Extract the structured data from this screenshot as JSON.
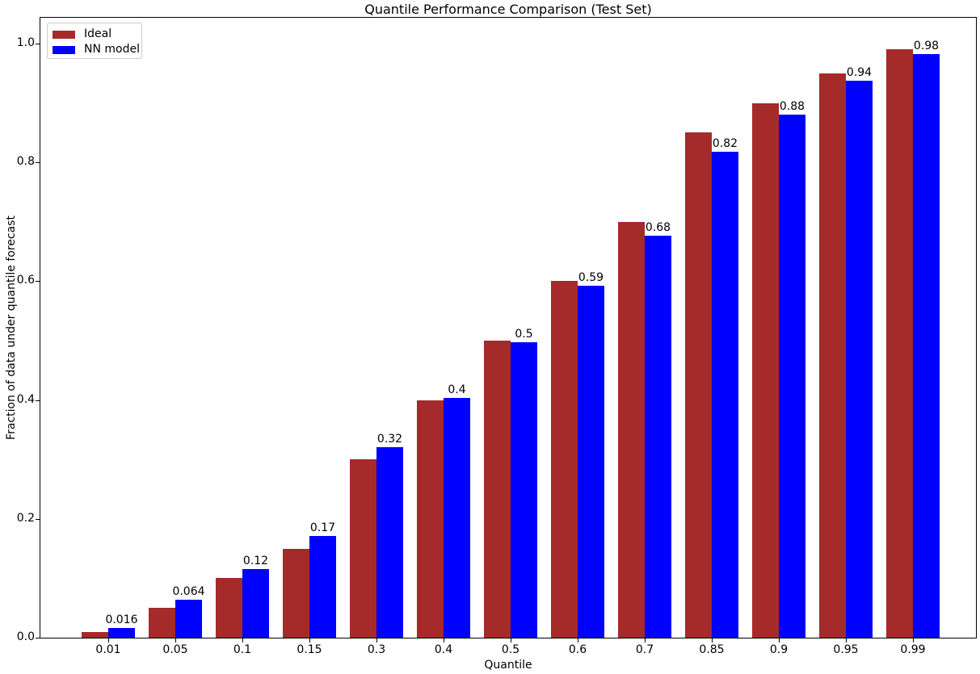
{
  "chart_data": {
    "type": "bar",
    "title": "Quantile Performance Comparison (Test Set)",
    "xlabel": "Quantile",
    "ylabel": "Fraction of data under quantile forecast",
    "categories": [
      "0.01",
      "0.05",
      "0.1",
      "0.15",
      "0.3",
      "0.4",
      "0.5",
      "0.6",
      "0.7",
      "0.85",
      "0.9",
      "0.95",
      "0.99"
    ],
    "series": [
      {
        "name": "Ideal",
        "color": "#A52A2A",
        "values": [
          0.01,
          0.05,
          0.1,
          0.15,
          0.3,
          0.4,
          0.5,
          0.6,
          0.7,
          0.85,
          0.9,
          0.95,
          0.99
        ]
      },
      {
        "name": "NN model",
        "color": "#0000FF",
        "values": [
          0.016,
          0.064,
          0.116,
          0.171,
          0.321,
          0.403,
          0.497,
          0.593,
          0.677,
          0.818,
          0.88,
          0.937,
          0.982
        ],
        "labels": [
          "0.016",
          "0.064",
          "0.12",
          "0.17",
          "0.32",
          "0.4",
          "0.5",
          "0.59",
          "0.68",
          "0.82",
          "0.88",
          "0.94",
          "0.98"
        ]
      }
    ],
    "yticks": [
      "0.0",
      "0.2",
      "0.4",
      "0.6",
      "0.8",
      "1.0"
    ],
    "ytick_values": [
      0.0,
      0.2,
      0.4,
      0.6,
      0.8,
      1.0
    ],
    "ylim": [
      0,
      1.043
    ],
    "grid": false,
    "legend_position": "upper left"
  }
}
